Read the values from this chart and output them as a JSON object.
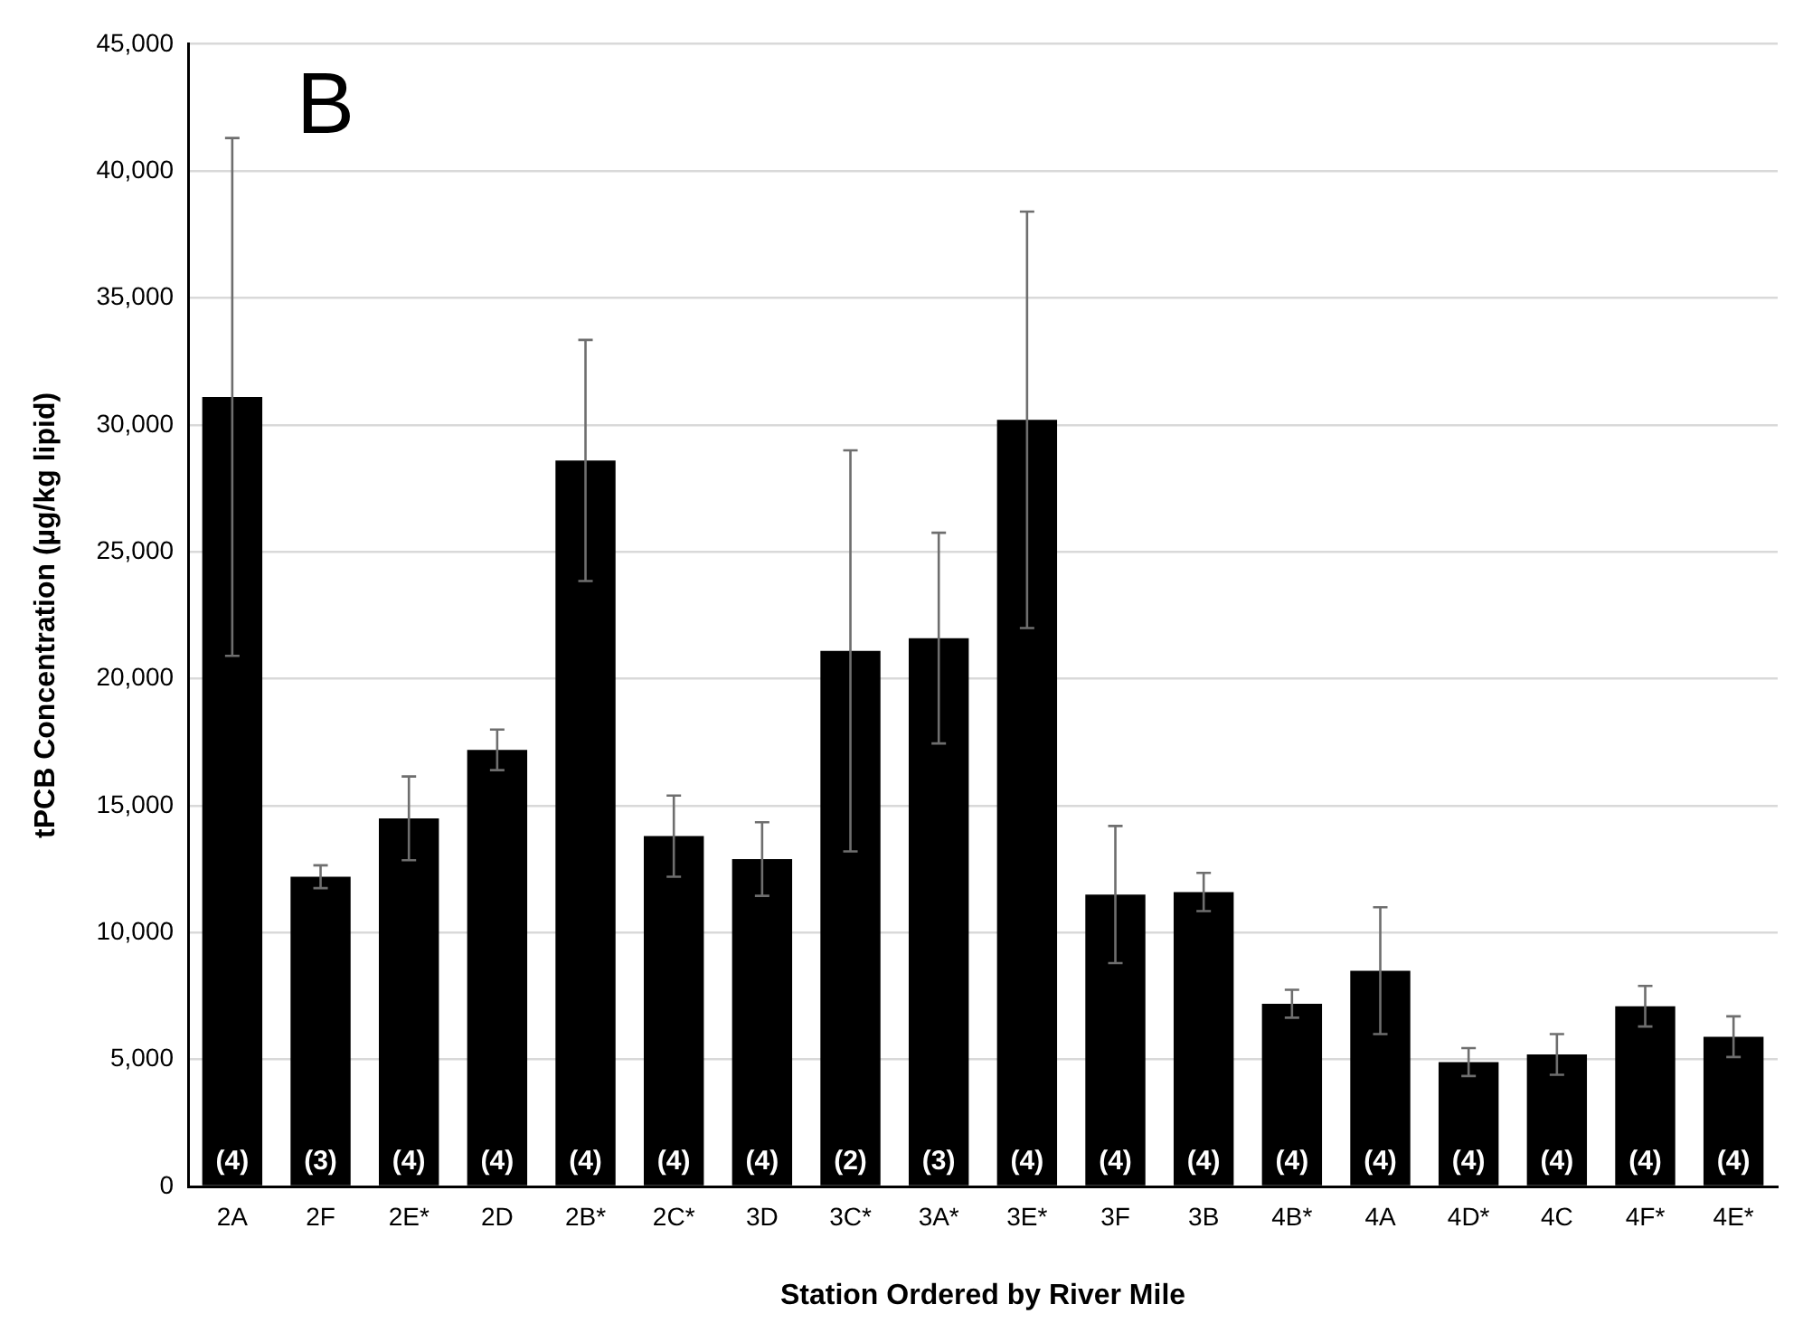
{
  "chart_data": {
    "type": "bar",
    "xlabel": "Station Ordered by River Mile",
    "ylabel": "tPCB Concentration (µg/kg lipid)",
    "categories": [
      "2A",
      "2F",
      "2E*",
      "2D",
      "2B*",
      "2C*",
      "3D",
      "3C*",
      "3A*",
      "3E*",
      "3F",
      "3B",
      "4B*",
      "4A",
      "4D*",
      "4C",
      "4F*",
      "4E*"
    ],
    "values": [
      31100,
      12200,
      14500,
      17200,
      28600,
      13800,
      12900,
      21100,
      21600,
      30200,
      11500,
      11600,
      7200,
      8500,
      4900,
      5200,
      7100,
      5900
    ],
    "errors": [
      10200,
      450,
      1650,
      800,
      4750,
      1600,
      1450,
      7900,
      4150,
      8200,
      2700,
      750,
      550,
      2500,
      550,
      800,
      800,
      800
    ],
    "color": "#000000",
    "ylim": [
      0,
      45000
    ],
    "yticks": [
      {
        "value": 0,
        "label": "0"
      },
      {
        "value": 5000,
        "label": "5,000"
      },
      {
        "value": 10000,
        "label": "10,000"
      },
      {
        "value": 15000,
        "label": "15,000"
      },
      {
        "value": 20000,
        "label": "20,000"
      },
      {
        "value": 25000,
        "label": "25,000"
      },
      {
        "value": 30000,
        "label": "30,000"
      },
      {
        "value": 35000,
        "label": "35,000"
      },
      {
        "value": 40000,
        "label": "40,000"
      },
      {
        "value": 45000,
        "label": "45,000"
      }
    ],
    "grid": "y",
    "legend": false,
    "annotations": [
      "B",
      {
        "text": "(4)",
        "x": "2A",
        "y": 0
      },
      {
        "text": "(3)",
        "x": "2F",
        "y": 0
      },
      {
        "text": "(4)",
        "x": "2E*",
        "y": 0
      },
      {
        "text": "(4)",
        "x": "2D",
        "y": 0
      },
      {
        "text": "(4)",
        "x": "2B*",
        "y": 0
      },
      {
        "text": "(4)",
        "x": "2C*",
        "y": 0
      },
      {
        "text": "(4)",
        "x": "3D",
        "y": 0
      },
      {
        "text": "(2)",
        "x": "3C*",
        "y": 0
      },
      {
        "text": "(3)",
        "x": "3A*",
        "y": 0
      },
      {
        "text": "(4)",
        "x": "3E*",
        "y": 0
      },
      {
        "text": "(4)",
        "x": "3F",
        "y": 0
      },
      {
        "text": "(4)",
        "x": "3B",
        "y": 0
      },
      {
        "text": "(4)",
        "x": "4B*",
        "y": 0
      },
      {
        "text": "(4)",
        "x": "4A",
        "y": 0
      },
      {
        "text": "(4)",
        "x": "4D*",
        "y": 0
      },
      {
        "text": "(4)",
        "x": "4C",
        "y": 0
      },
      {
        "text": "(4)",
        "x": "4F*",
        "y": 0
      },
      {
        "text": "(4)",
        "x": "4E*",
        "y": 0
      }
    ]
  }
}
